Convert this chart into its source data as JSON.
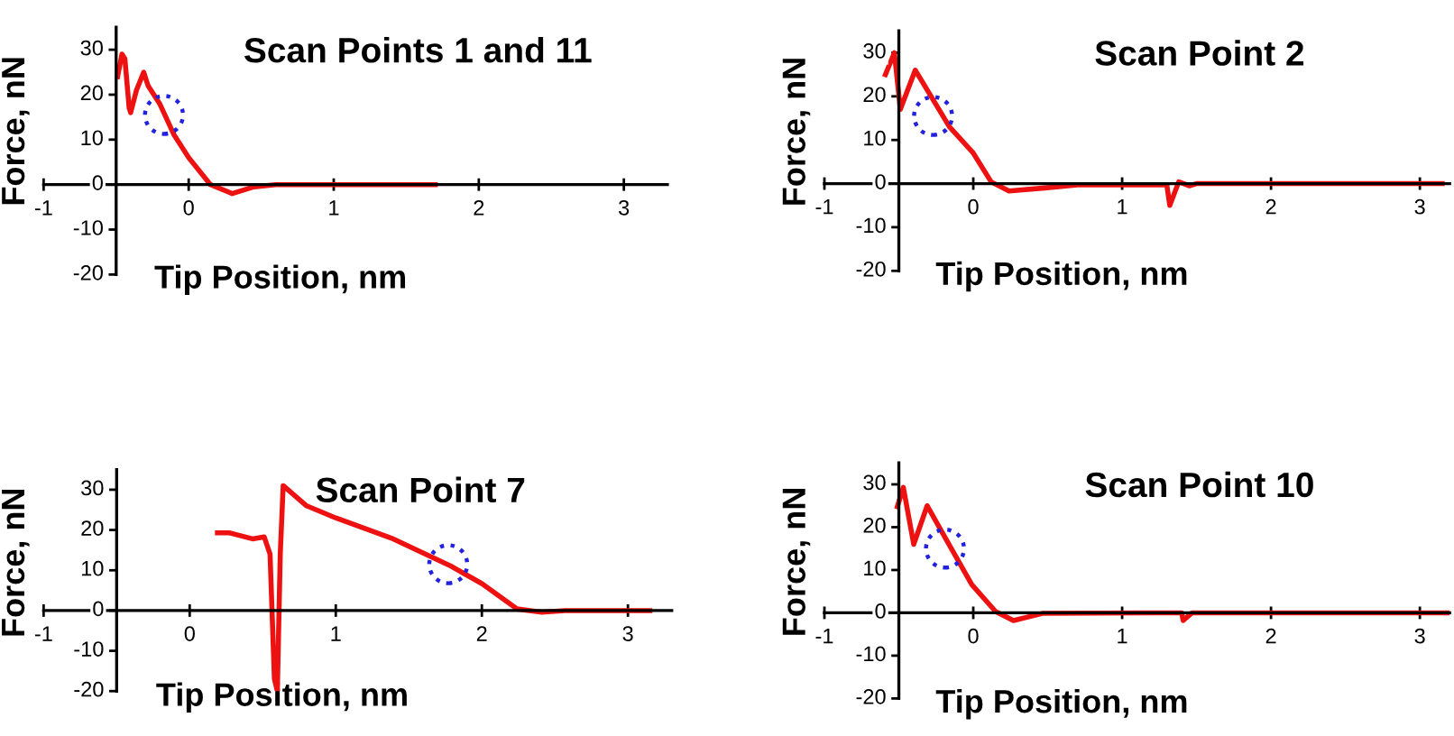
{
  "chart_data": [
    {
      "type": "line",
      "title": "Scan Points 1 and 11",
      "xlabel": "Tip Position, nm",
      "ylabel": "Force, nN",
      "xlim": [
        -1,
        3.3
      ],
      "ylim": [
        -20,
        35
      ],
      "xticks": [
        -1,
        0,
        1,
        2,
        3
      ],
      "yticks": [
        -20,
        -10,
        0,
        10,
        20,
        30
      ],
      "series": [
        {
          "color": "#ee1111",
          "marker": "none",
          "x": [
            -0.49,
            -0.46,
            -0.44,
            -0.41,
            -0.4,
            -0.36,
            -0.31,
            -0.28,
            -0.2,
            -0.1,
            0,
            0.1,
            0.15,
            0.3,
            0.45,
            0.6,
            1.7
          ],
          "values": [
            24,
            29,
            28,
            17,
            16,
            21,
            25,
            22,
            18,
            11,
            6,
            2,
            0,
            -2,
            -0.5,
            0,
            0
          ]
        },
        {
          "type": "scatter",
          "color": "#2222dd",
          "marker": "circle",
          "x": [
            -0.17
          ],
          "values": [
            15.5
          ]
        }
      ]
    },
    {
      "type": "line",
      "title": "Scan Point 2",
      "xlabel": "Tip Position, nm",
      "ylabel": "Force, nN",
      "xlim": [
        -1,
        3.2
      ],
      "ylim": [
        -20,
        35
      ],
      "xticks": [
        -1,
        0,
        1,
        2,
        3
      ],
      "yticks": [
        -20,
        -10,
        0,
        10,
        20,
        30
      ],
      "series": [
        {
          "color": "#ee1111",
          "marker": "none",
          "x": [
            -0.59,
            -0.53,
            -0.49,
            -0.39,
            -0.16,
            0,
            0.12,
            0.24,
            0.48,
            0.7,
            1.3,
            1.32,
            1.38,
            1.45,
            1.5,
            3.15
          ],
          "values": [
            25,
            30,
            17,
            26,
            13,
            7,
            0.4,
            -1.7,
            -1,
            -0.3,
            -0.3,
            -5,
            0.4,
            -0.5,
            0,
            0
          ]
        },
        {
          "type": "scatter",
          "color": "#2222dd",
          "marker": "circle",
          "x": [
            -0.27
          ],
          "values": [
            15.5
          ]
        }
      ]
    },
    {
      "type": "line",
      "title": "Scan Point 7",
      "xlabel": "Tip Position, nm",
      "ylabel": "Force, nN",
      "xlim": [
        -1,
        3.3
      ],
      "ylim": [
        -20,
        35
      ],
      "xticks": [
        -1,
        0,
        1,
        2,
        3
      ],
      "yticks": [
        -20,
        -10,
        0,
        10,
        20,
        30
      ],
      "series": [
        {
          "color": "#ee1111",
          "marker": "none",
          "x": [
            0.19,
            0.27,
            0.43,
            0.51,
            0.55,
            0.58,
            0.6,
            0.62,
            0.64,
            0.8,
            1.0,
            1.38,
            1.79,
            2.0,
            2.24,
            2.41,
            2.57,
            3.15
          ],
          "values": [
            19.3,
            19.3,
            17.8,
            18.3,
            14,
            -17,
            -20,
            14,
            31,
            26,
            23,
            18,
            11,
            6.7,
            0.4,
            -0.4,
            0,
            0
          ]
        },
        {
          "type": "scatter",
          "color": "#2222dd",
          "marker": "circle",
          "x": [
            1.77
          ],
          "values": [
            11.5
          ]
        }
      ]
    },
    {
      "type": "line",
      "title": "Scan Point 10",
      "xlabel": "Tip Position, nm",
      "ylabel": "Force, nN",
      "xlim": [
        -1,
        3.2
      ],
      "ylim": [
        -20,
        35
      ],
      "xticks": [
        -1,
        0,
        1,
        2,
        3
      ],
      "yticks": [
        -20,
        -10,
        0,
        10,
        20,
        30
      ],
      "series": [
        {
          "color": "#ee1111",
          "marker": "none",
          "x": [
            -0.51,
            -0.47,
            -0.4,
            -0.31,
            -0.17,
            -0.01,
            0.15,
            0.27,
            0.47,
            1.4,
            1.41,
            1.47,
            3.2
          ],
          "values": [
            24.8,
            29.3,
            16,
            25,
            16.4,
            6.6,
            0.3,
            -1.8,
            -0.1,
            0,
            -1.8,
            0,
            0
          ]
        },
        {
          "type": "scatter",
          "color": "#2222dd",
          "marker": "circle",
          "x": [
            -0.19
          ],
          "values": [
            15
          ]
        }
      ]
    }
  ]
}
